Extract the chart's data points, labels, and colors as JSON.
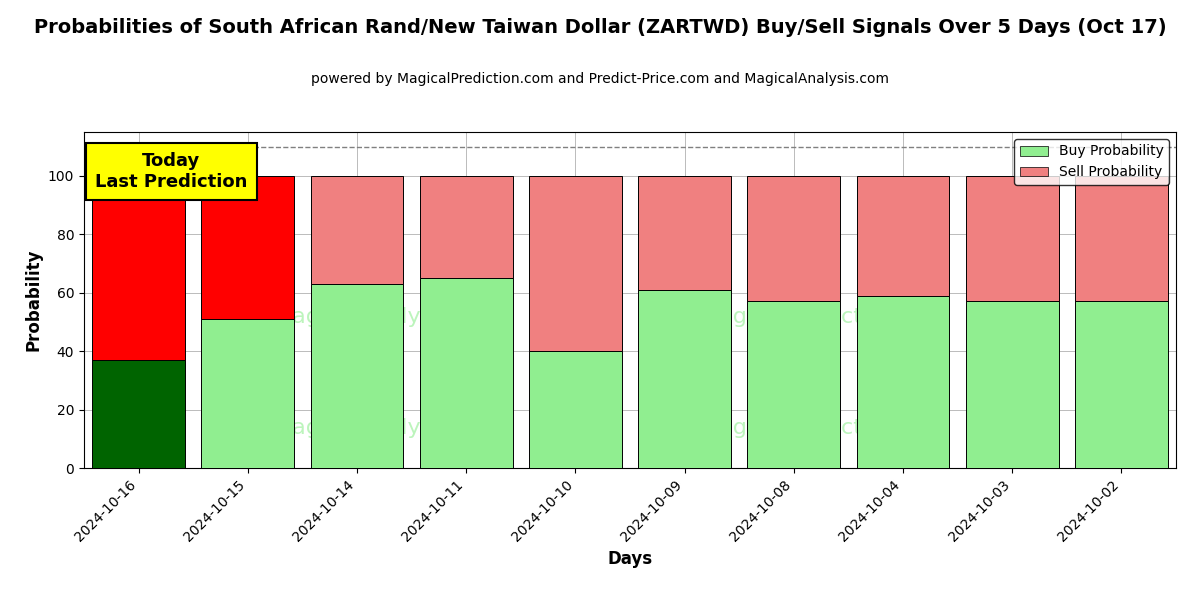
{
  "title": "Probabilities of South African Rand/New Taiwan Dollar (ZARTWD) Buy/Sell Signals Over 5 Days (Oct 17)",
  "subtitle": "powered by MagicalPrediction.com and Predict-Price.com and MagicalAnalysis.com",
  "xlabel": "Days",
  "ylabel": "Probability",
  "categories": [
    "2024-10-16",
    "2024-10-15",
    "2024-10-14",
    "2024-10-11",
    "2024-10-10",
    "2024-10-09",
    "2024-10-08",
    "2024-10-04",
    "2024-10-03",
    "2024-10-02"
  ],
  "buy_values": [
    37,
    51,
    63,
    65,
    40,
    61,
    57,
    59,
    57,
    57
  ],
  "sell_values": [
    63,
    49,
    37,
    35,
    60,
    39,
    43,
    41,
    43,
    43
  ],
  "buy_colors": [
    "#006400",
    "#90EE90",
    "#90EE90",
    "#90EE90",
    "#90EE90",
    "#90EE90",
    "#90EE90",
    "#90EE90",
    "#90EE90",
    "#90EE90"
  ],
  "sell_colors": [
    "#FF0000",
    "#FF0000",
    "#F08080",
    "#F08080",
    "#F08080",
    "#F08080",
    "#F08080",
    "#F08080",
    "#F08080",
    "#F08080"
  ],
  "legend_buy_color": "#90EE90",
  "legend_sell_color": "#F08080",
  "today_box_color": "#FFFF00",
  "today_box_text": "Today\nLast Prediction",
  "dashed_line_y": 110,
  "ylim": [
    0,
    115
  ],
  "yticks": [
    0,
    20,
    40,
    60,
    80,
    100
  ],
  "bg_color": "#ffffff",
  "grid_color": "#bbbbbb",
  "bar_width": 0.85,
  "title_fontsize": 14,
  "subtitle_fontsize": 10,
  "legend_label_buy": "Buy Probability",
  "legend_label_sell": "Sell Probability"
}
